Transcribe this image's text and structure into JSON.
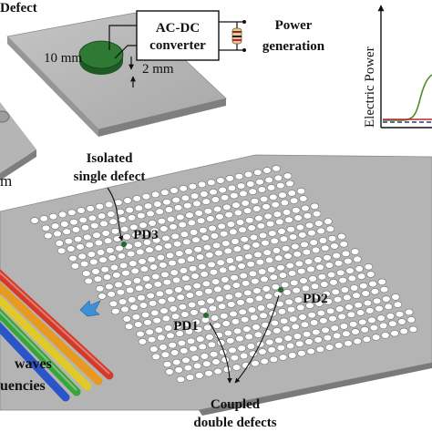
{
  "labels": {
    "defect_top": "Defect",
    "converter_line1": "AC-DC",
    "converter_line2": "converter",
    "power_line1": "Power",
    "power_line2": "generation",
    "dim_diameter": "10 mm",
    "dim_height": "2 mm",
    "axis_label": "Electric Power",
    "mm_cut": "m",
    "isolated_line1": "Isolated",
    "isolated_line2": "single defect",
    "pd1": "PD1",
    "pd2": "PD2",
    "pd3": "PD3",
    "coupled_line1": "Coupled",
    "coupled_line2": "double defects",
    "waves_line1": "waves",
    "waves_line2": "uencies"
  },
  "colors": {
    "plate_top": "#b9b9b9",
    "plate_side": "#8a8a8a",
    "defect_green": "#2e7a34",
    "arrow_blue": "#3f8fd8",
    "curve_green": "#4f8f2a",
    "curve_red": "#c0262b",
    "curve_blue": "#233a8c",
    "wave_red": "#d43a2a",
    "wave_orange": "#e79a1e",
    "wave_yellow": "#e0c92a",
    "wave_green": "#3aa43c",
    "wave_blue": "#2a55c9"
  },
  "icons": [
    "resistor-icon",
    "arrow-icon"
  ]
}
